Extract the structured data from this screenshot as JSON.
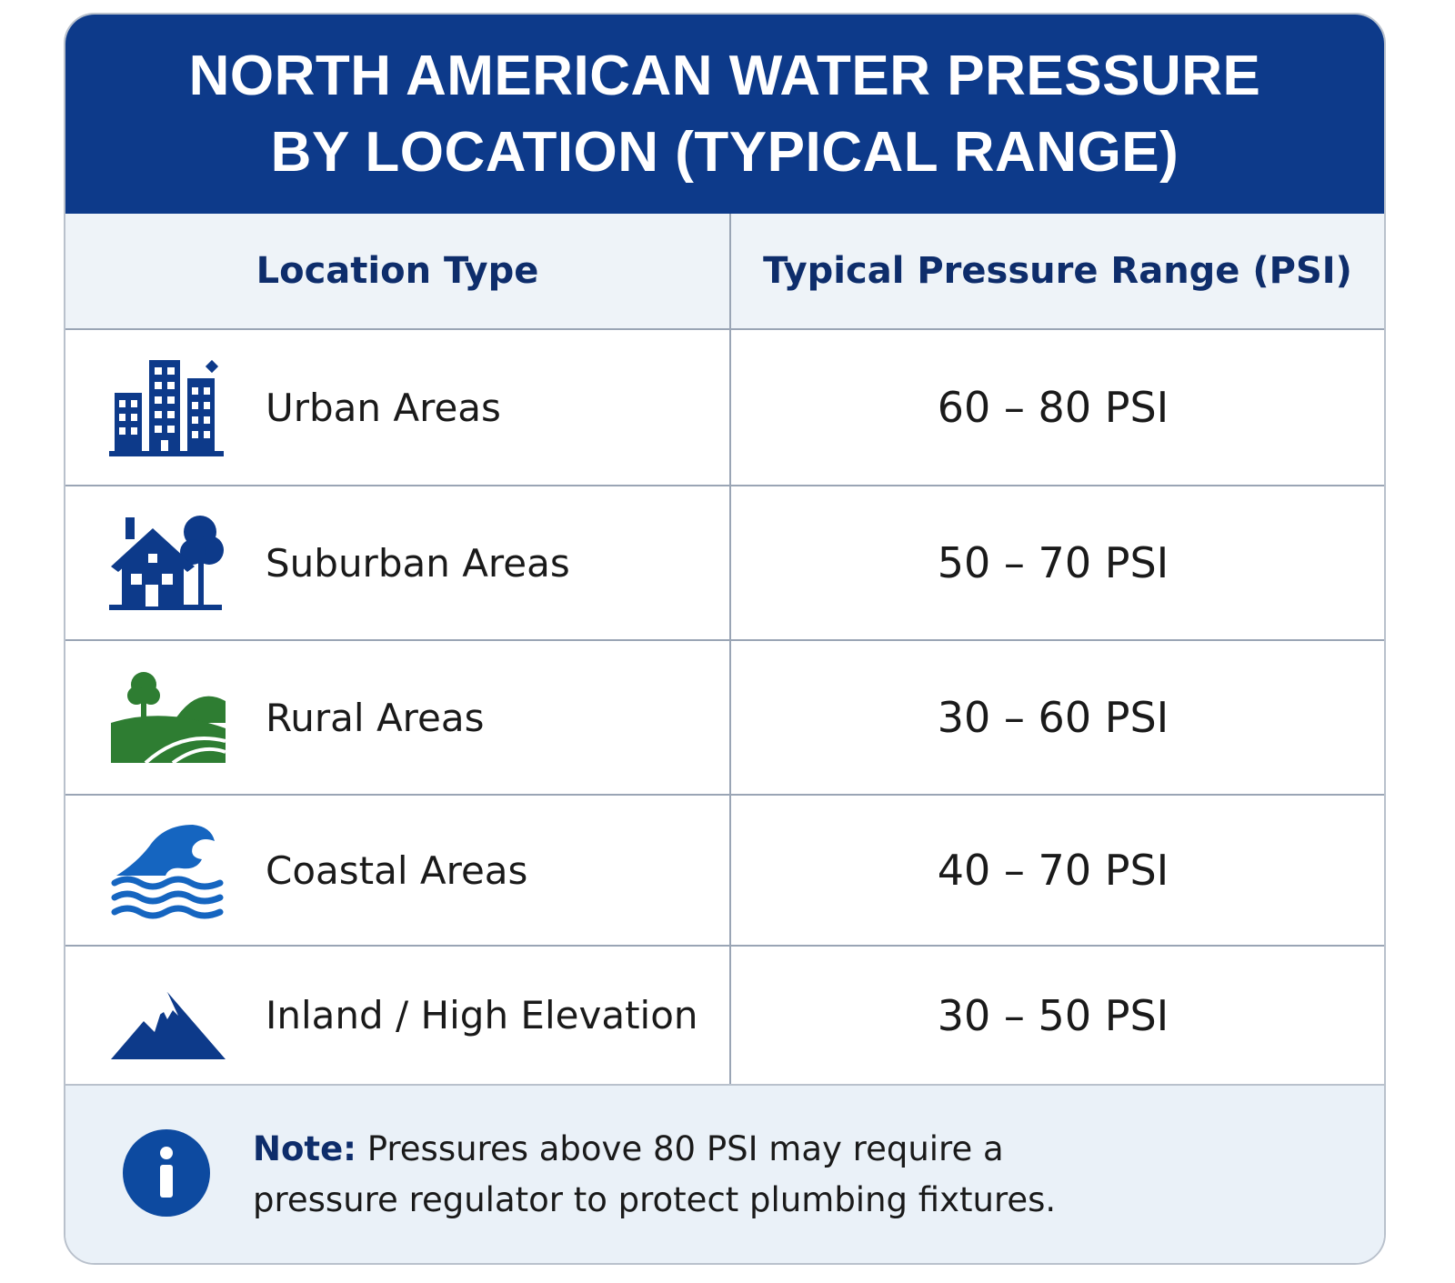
{
  "title": "NORTH AMERICAN WATER PRESSURE BY LOCATION (TYPICAL RANGE)",
  "columns": {
    "location": "Location Type",
    "range": "Typical Pressure Range (PSI)"
  },
  "rows": [
    {
      "icon": "city-buildings-icon",
      "label": "Urban Areas",
      "range": "60 – 80 PSI"
    },
    {
      "icon": "house-tree-icon",
      "label": "Suburban Areas",
      "range": "50 – 70 PSI"
    },
    {
      "icon": "rural-hills-icon",
      "label": "Rural Areas",
      "range": "30 – 60 PSI"
    },
    {
      "icon": "ocean-wave-icon",
      "label": "Coastal Areas",
      "range": "40 – 70 PSI"
    },
    {
      "icon": "mountain-icon",
      "label": "Inland / High Elevation",
      "range": "30 – 50 PSI"
    }
  ],
  "note": {
    "icon": "info-icon",
    "lead": "Note:",
    "text": " Pressures above 80 PSI may require a pressure regulator to protect plumbing fixtures."
  },
  "colors": {
    "header_bg": "#0d3a8a",
    "column_header_bg": "#eef3f8",
    "note_bg": "#eaf1f8",
    "icon_navy": "#0d3a8a",
    "icon_green": "#2e7d32",
    "icon_blue": "#1565c0"
  }
}
